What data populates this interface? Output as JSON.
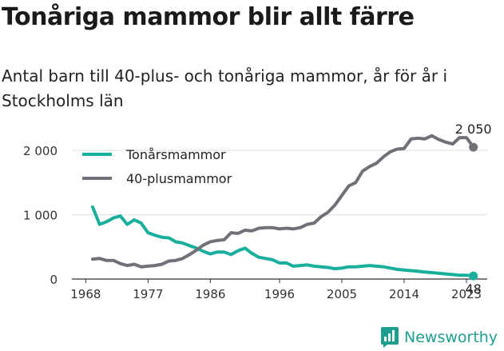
{
  "title": "Tonåriga mammor blir allt färre",
  "subtitle": "Antal barn till 40-plus- och tonåriga mammor, år för år i Stockholms län",
  "brand": "Newsworthy",
  "colors": {
    "teen": "#1aaf9d",
    "forty": "#707078",
    "brand": "#1e9e8f"
  },
  "chart_data": {
    "type": "line",
    "x_ticks": [
      1968,
      1977,
      1986,
      1996,
      2005,
      2014,
      2023
    ],
    "y_ticks": [
      0,
      1000,
      2000
    ],
    "y_tick_labels": [
      "0",
      "1 000",
      "2 000"
    ],
    "xlim": [
      1966,
      2026
    ],
    "ylim": [
      0,
      2350
    ],
    "legend_position": "top-left",
    "x": [
      1969,
      1970,
      1971,
      1972,
      1973,
      1974,
      1975,
      1976,
      1977,
      1978,
      1979,
      1980,
      1981,
      1982,
      1983,
      1984,
      1985,
      1986,
      1987,
      1988,
      1989,
      1990,
      1991,
      1992,
      1993,
      1994,
      1995,
      1996,
      1997,
      1998,
      1999,
      2000,
      2001,
      2002,
      2003,
      2004,
      2005,
      2006,
      2007,
      2008,
      2009,
      2010,
      2011,
      2012,
      2013,
      2014,
      2015,
      2016,
      2017,
      2018,
      2019,
      2020,
      2021,
      2022,
      2023,
      2024
    ],
    "series": [
      {
        "name": "Tonårsmammor",
        "color": "#1aaf9d",
        "values": [
          1120,
          850,
          890,
          950,
          980,
          850,
          920,
          870,
          720,
          680,
          650,
          640,
          580,
          560,
          520,
          480,
          430,
          390,
          420,
          420,
          380,
          440,
          480,
          400,
          340,
          320,
          300,
          250,
          250,
          200,
          210,
          220,
          200,
          190,
          180,
          160,
          170,
          190,
          190,
          200,
          210,
          200,
          190,
          170,
          150,
          140,
          130,
          120,
          110,
          100,
          90,
          80,
          70,
          60,
          60,
          48
        ],
        "end_label": "48"
      },
      {
        "name": "40-plusmammor",
        "color": "#707078",
        "values": [
          310,
          320,
          290,
          290,
          240,
          210,
          230,
          190,
          200,
          210,
          230,
          280,
          290,
          320,
          380,
          450,
          530,
          580,
          600,
          610,
          720,
          710,
          760,
          750,
          790,
          800,
          800,
          780,
          790,
          780,
          800,
          850,
          870,
          970,
          1040,
          1150,
          1300,
          1450,
          1500,
          1680,
          1750,
          1800,
          1900,
          1980,
          2020,
          2030,
          2180,
          2190,
          2180,
          2230,
          2170,
          2130,
          2100,
          2200,
          2200,
          2050
        ],
        "end_label": "2 050"
      }
    ]
  }
}
